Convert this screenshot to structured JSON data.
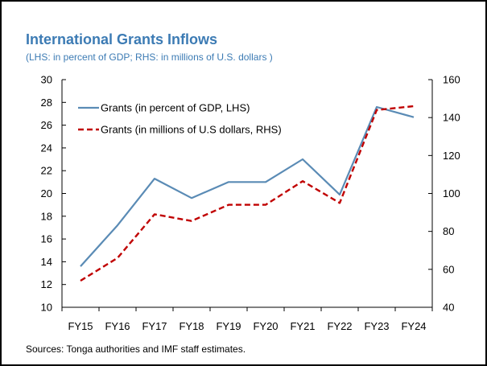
{
  "chart_data": {
    "type": "line",
    "title": "International Grants Inflows",
    "subtitle": "(LHS: in percent of GDP; RHS: in millions of U.S. dollars )",
    "categories": [
      "FY15",
      "FY16",
      "FY17",
      "FY18",
      "FY19",
      "FY20",
      "FY21",
      "FY22",
      "FY23",
      "FY24"
    ],
    "left_axis": {
      "ylim": [
        10,
        30
      ],
      "ticks": [
        10,
        12,
        14,
        16,
        18,
        20,
        22,
        24,
        26,
        28,
        30
      ]
    },
    "right_axis": {
      "ylim": [
        40,
        160
      ],
      "ticks": [
        40,
        60,
        80,
        100,
        120,
        140,
        160
      ]
    },
    "series": [
      {
        "name": "Grants (in percent of GDP, LHS)",
        "axis": "left",
        "color": "#5a8bb5",
        "style": "solid",
        "values": [
          13.6,
          17.2,
          21.3,
          19.6,
          21.0,
          21.0,
          23.0,
          19.9,
          27.6,
          26.7
        ]
      },
      {
        "name": "Grants (in millions of U.S dollars, RHS)",
        "axis": "right",
        "color": "#c00000",
        "style": "dashed",
        "values": [
          54,
          66,
          89,
          85.5,
          94,
          94,
          106.5,
          95,
          144,
          146
        ]
      }
    ],
    "grid": false,
    "legend_position": "top-left",
    "source": "Sources: Tonga authorities and IMF staff estimates."
  }
}
